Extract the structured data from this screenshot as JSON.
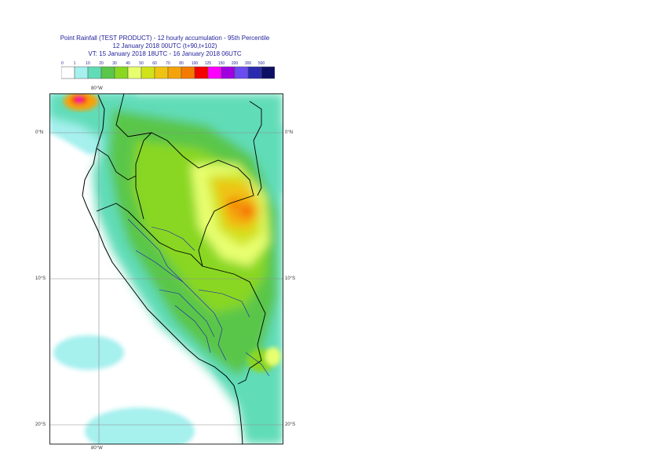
{
  "title": {
    "line1": "Point Rainfall (TEST PRODUCT) - 12 hourly accumulation - 95th Percentile",
    "line2": "12 January 2018 00UTC (t+90,t+102)",
    "line3": "VT: 15 January 2018 18UTC - 16 January 2018 06UTC"
  },
  "colorbar": {
    "levels": [
      "0",
      "1",
      "10",
      "20",
      "30",
      "40",
      "50",
      "60",
      "70",
      "80",
      "100",
      "125",
      "150",
      "200",
      "300",
      "500"
    ],
    "colors": [
      "#ffffff",
      "#a6f0ee",
      "#61dcb7",
      "#5ac64a",
      "#89d721",
      "#e8ff70",
      "#d2e21a",
      "#f0c312",
      "#f5a30a",
      "#f57b00",
      "#f50000",
      "#ff00ff",
      "#a000e0",
      "#6a4cf0",
      "#2a2ab0",
      "#0e0e64"
    ]
  },
  "map": {
    "lat_labels": [
      "0°N",
      "10°S",
      "20°S"
    ],
    "lon_label": "80°W"
  }
}
